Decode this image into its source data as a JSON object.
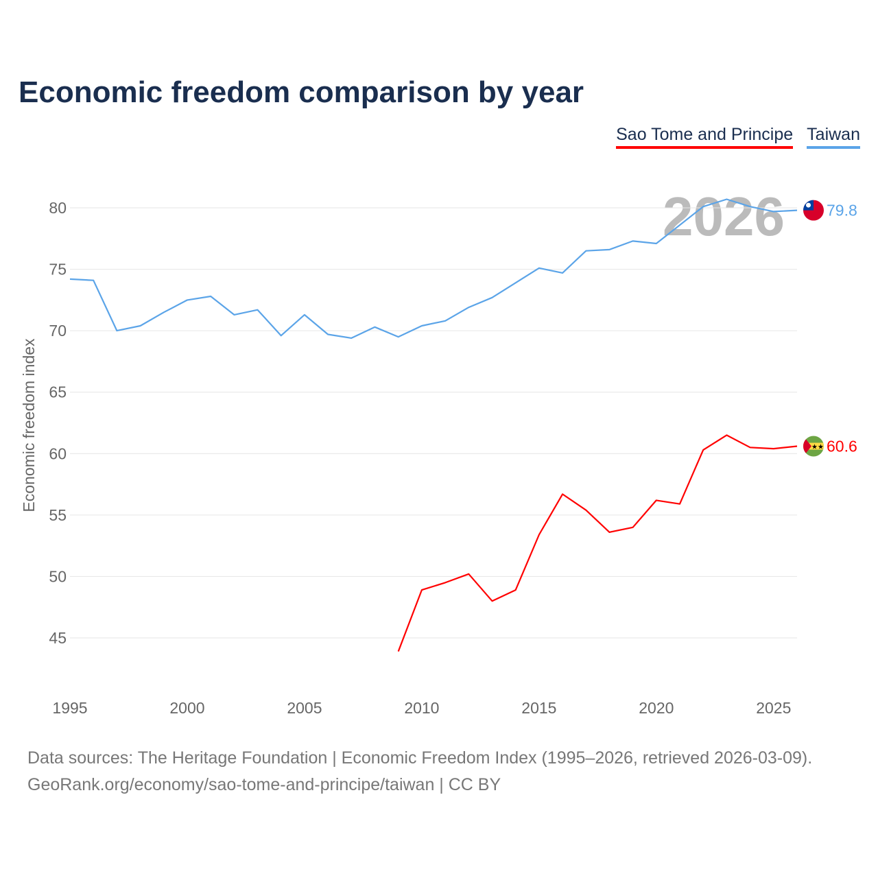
{
  "chart_data": {
    "type": "line",
    "title": "Economic freedom comparison by year",
    "xlabel": "",
    "ylabel": "Economic freedom index",
    "xlim": [
      1995,
      2026
    ],
    "ylim": [
      42,
      82
    ],
    "xticks": [
      1995,
      2000,
      2005,
      2010,
      2015,
      2020,
      2025
    ],
    "yticks": [
      45,
      50,
      55,
      60,
      65,
      70,
      75,
      80
    ],
    "grid": true,
    "legend_position": "top-right",
    "watermark_year": "2026",
    "series": [
      {
        "name": "Sao Tome and Principe",
        "color": "#ff0000",
        "end_label": "60.6",
        "flag": "sao-tome-flag",
        "x": [
          2009,
          2010,
          2011,
          2012,
          2013,
          2014,
          2015,
          2016,
          2017,
          2018,
          2019,
          2020,
          2021,
          2022,
          2023,
          2024,
          2025,
          2026
        ],
        "values": [
          43.9,
          48.9,
          49.5,
          50.2,
          48.0,
          48.9,
          53.4,
          56.7,
          55.4,
          53.6,
          54.0,
          56.2,
          55.9,
          60.3,
          61.5,
          60.5,
          60.4,
          60.6
        ]
      },
      {
        "name": "Taiwan",
        "color": "#5ba4e8",
        "end_label": "79.8",
        "flag": "taiwan-flag",
        "x": [
          1995,
          1996,
          1997,
          1998,
          1999,
          2000,
          2001,
          2002,
          2003,
          2004,
          2005,
          2006,
          2007,
          2008,
          2009,
          2010,
          2011,
          2012,
          2013,
          2014,
          2015,
          2016,
          2017,
          2018,
          2019,
          2020,
          2021,
          2022,
          2023,
          2024,
          2025,
          2026
        ],
        "values": [
          74.2,
          74.1,
          70.0,
          70.4,
          71.5,
          72.5,
          72.8,
          71.3,
          71.7,
          69.6,
          71.3,
          69.7,
          69.4,
          70.3,
          69.5,
          70.4,
          70.8,
          71.9,
          72.7,
          73.9,
          75.1,
          74.7,
          76.5,
          76.6,
          77.3,
          77.1,
          78.6,
          80.1,
          80.7,
          80.1,
          79.7,
          79.8
        ]
      }
    ]
  },
  "footer": {
    "line1": "Data sources: The Heritage Foundation | Economic Freedom Index (1995–2026, retrieved 2026-03-09).",
    "line2": "GeoRank.org/economy/sao-tome-and-principe/taiwan | CC BY"
  }
}
